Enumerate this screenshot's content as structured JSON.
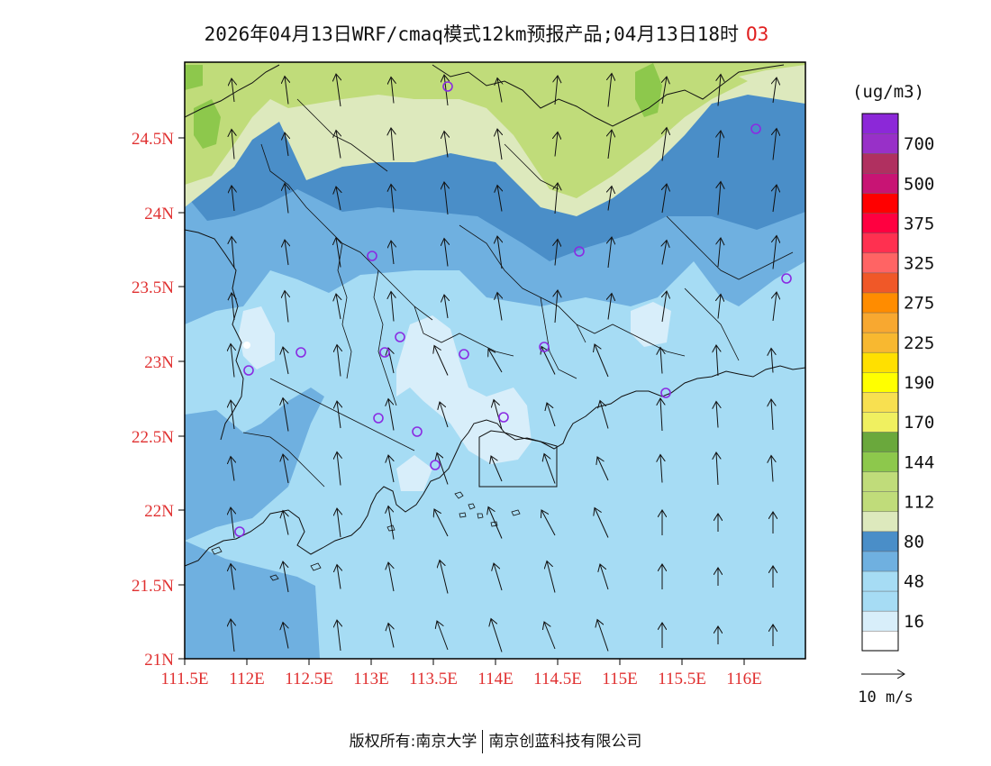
{
  "title": {
    "main": "2026年04月13日WRF/cmaq模式12km预报产品;04月13日18时",
    "pollutant": "O3"
  },
  "axes": {
    "lat_labels": [
      "24.5N",
      "24N",
      "23.5N",
      "23N",
      "22.5N",
      "22N",
      "21.5N",
      "21N"
    ],
    "lon_labels": [
      "111.5E",
      "112E",
      "112.5E",
      "113E",
      "113.5E",
      "114E",
      "114.5E",
      "115E",
      "115.5E",
      "116E"
    ],
    "label_color": "#e03030"
  },
  "legend": {
    "unit": "(ug/m3)",
    "bins": [
      {
        "color": "#ffffff",
        "label": ""
      },
      {
        "color": "#d8eefa",
        "label": "16"
      },
      {
        "color": "#a6dcf4",
        "label": ""
      },
      {
        "color": "#a6dcf4",
        "label": "48"
      },
      {
        "color": "#6fb0e0",
        "label": ""
      },
      {
        "color": "#4a8ec8",
        "label": "80"
      },
      {
        "color": "#dde9bd",
        "label": ""
      },
      {
        "color": "#c0dc7a",
        "label": "112"
      },
      {
        "color": "#c0dc7a",
        "label": ""
      },
      {
        "color": "#8dc84c",
        "label": "144"
      },
      {
        "color": "#6aa83c",
        "label": ""
      },
      {
        "color": "#f0f060",
        "label": "170"
      },
      {
        "color": "#f8e050",
        "label": ""
      },
      {
        "color": "#ffff00",
        "label": "190"
      },
      {
        "color": "#ffe000",
        "label": ""
      },
      {
        "color": "#f8b830",
        "label": "225"
      },
      {
        "color": "#f8a830",
        "label": ""
      },
      {
        "color": "#ff8c00",
        "label": "275"
      },
      {
        "color": "#f05828",
        "label": ""
      },
      {
        "color": "#ff6464",
        "label": "325"
      },
      {
        "color": "#ff3050",
        "label": ""
      },
      {
        "color": "#ff0040",
        "label": "375"
      },
      {
        "color": "#ff0000",
        "label": ""
      },
      {
        "color": "#c81474",
        "label": "500"
      },
      {
        "color": "#b03060",
        "label": ""
      },
      {
        "color": "#9830c8",
        "label": "700"
      },
      {
        "color": "#8c28d8",
        "label": ""
      }
    ]
  },
  "wind_reference": {
    "label": "10 m/s"
  },
  "footer": {
    "left": "版权所有:南京大学",
    "right": "南京创蓝科技有限公司"
  },
  "colors": {
    "frame": "#000000",
    "station": "#8a2be2"
  }
}
